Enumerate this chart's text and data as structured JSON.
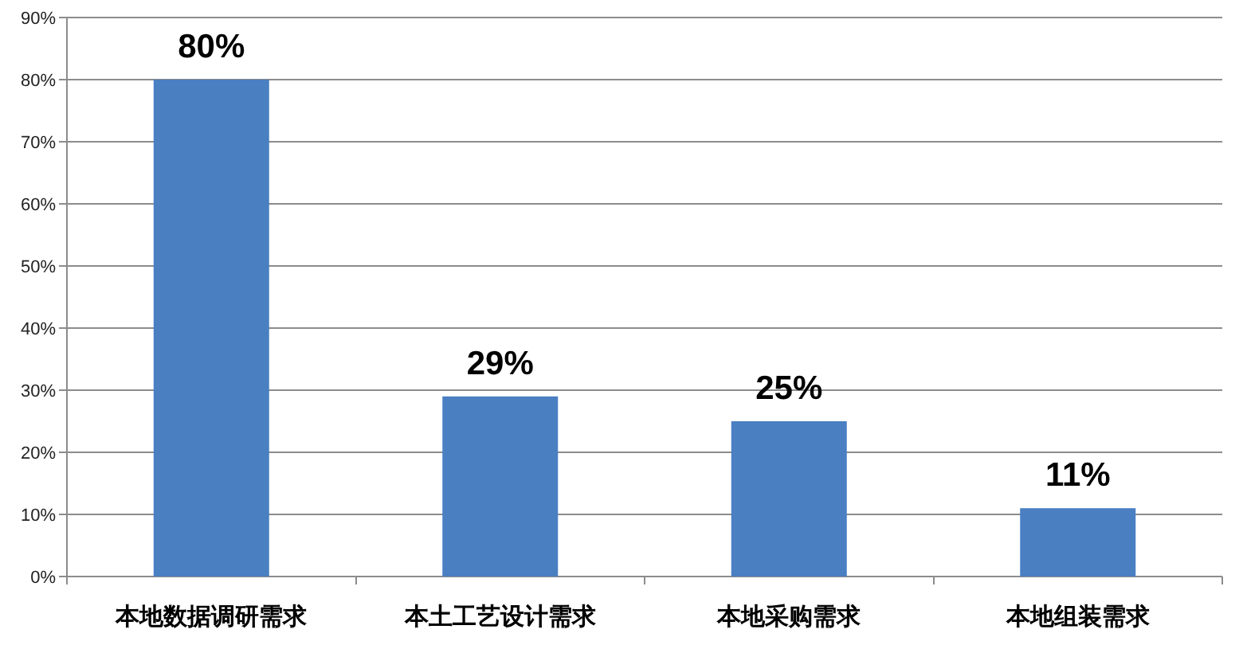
{
  "chart_data": {
    "type": "bar",
    "categories": [
      "本地数据调研需求",
      "本土工艺设计需求",
      "本地采购需求",
      "本地组装需求"
    ],
    "values": [
      80,
      29,
      25,
      11
    ],
    "color": "#4a7fc2",
    "value_labels": [
      "80%",
      "29%",
      "25%",
      "11%"
    ],
    "ylim": [
      0,
      90
    ],
    "yticks": [
      {
        "value": 0,
        "label": "0%"
      },
      {
        "value": 10,
        "label": "10%"
      },
      {
        "value": 20,
        "label": "20%"
      },
      {
        "value": 30,
        "label": "30%"
      },
      {
        "value": 40,
        "label": "40%"
      },
      {
        "value": 50,
        "label": "50%"
      },
      {
        "value": 60,
        "label": "60%"
      },
      {
        "value": 70,
        "label": "70%"
      },
      {
        "value": 80,
        "label": "80%"
      },
      {
        "value": 90,
        "label": "90%"
      }
    ],
    "grid": "y"
  }
}
